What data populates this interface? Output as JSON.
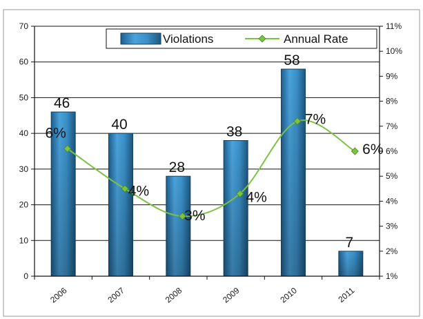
{
  "chart_data": {
    "type": "bar",
    "categories": [
      "2006",
      "2007",
      "2008",
      "2009",
      "2010",
      "2011"
    ],
    "series": [
      {
        "name": "Violations",
        "kind": "bar",
        "axis": "left",
        "color": "#3b8fc7",
        "values": [
          46,
          40,
          28,
          38,
          58,
          7
        ],
        "labels": [
          "46",
          "40",
          "28",
          "38",
          "58",
          "7"
        ]
      },
      {
        "name": "Annual Rate",
        "kind": "line",
        "axis": "right",
        "color": "#7dc242",
        "values": [
          6.1,
          4.5,
          3.4,
          4.3,
          7.2,
          6.0
        ],
        "labels": [
          "6%",
          "4%",
          "3%",
          "4%",
          "7%",
          "6%"
        ]
      }
    ],
    "ylim_left": [
      0,
      70
    ],
    "yticks_left": [
      "0",
      "10",
      "20",
      "30",
      "40",
      "50",
      "60",
      "70"
    ],
    "ylim_right": [
      1,
      11
    ],
    "yticks_right": [
      "1%",
      "2%",
      "3%",
      "4%",
      "5%",
      "6%",
      "7%",
      "8%",
      "9%",
      "10%",
      "11%"
    ],
    "grid": "horizontal",
    "legend_position": "top-right",
    "title": "",
    "xlabel": "",
    "ylabel": ""
  }
}
